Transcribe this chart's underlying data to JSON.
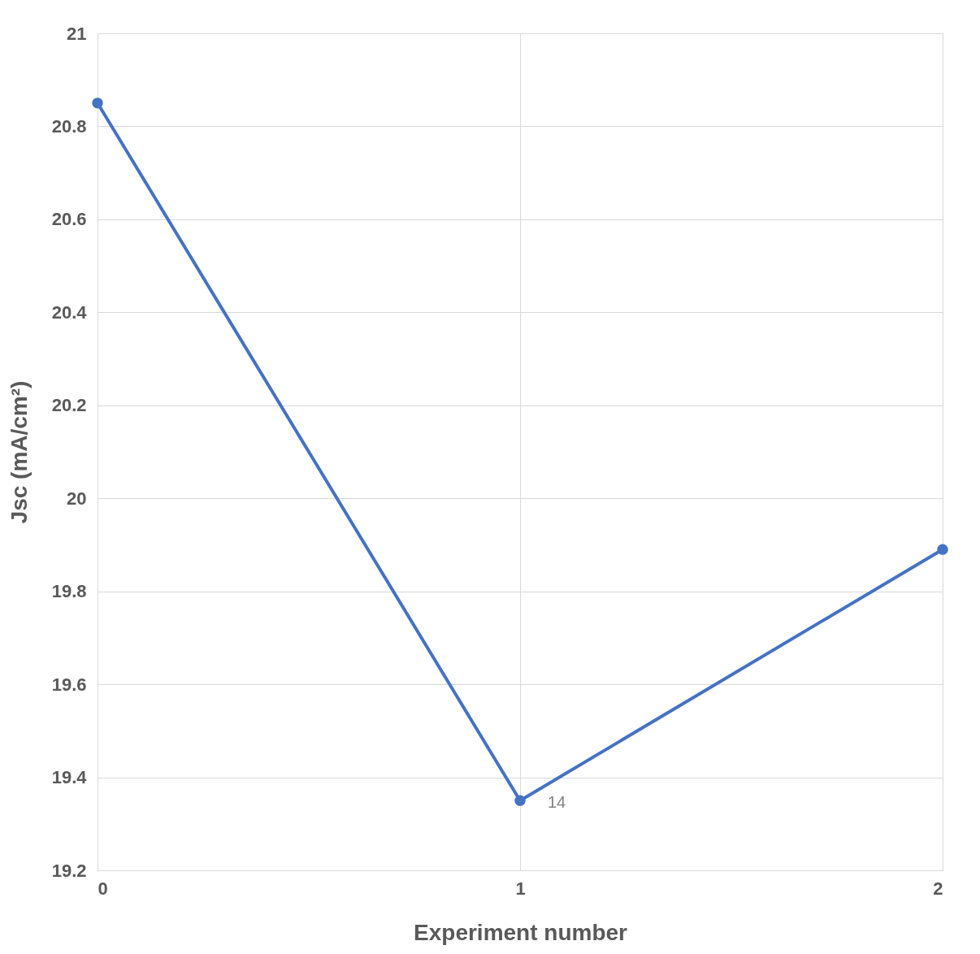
{
  "chart_data": {
    "type": "line",
    "xlabel": "Experiment number",
    "ylabel": "Jsc (mA/cm²)",
    "x": [
      0,
      1,
      2
    ],
    "series": [
      {
        "color": "#4472c4",
        "values": [
          20.85,
          19.35,
          19.89
        ]
      }
    ],
    "xlim": [
      0,
      2
    ],
    "xticks": [
      0,
      1,
      2
    ],
    "ylim": [
      19.2,
      21
    ],
    "yticks": [
      19.2,
      19.4,
      19.6,
      19.8,
      20,
      20.2,
      20.4,
      20.6,
      20.8,
      21
    ],
    "grid": true,
    "marker": "circle",
    "line_style": "solid",
    "annotations": [
      {
        "text": "14",
        "x": 1,
        "y": 19.35
      }
    ]
  }
}
